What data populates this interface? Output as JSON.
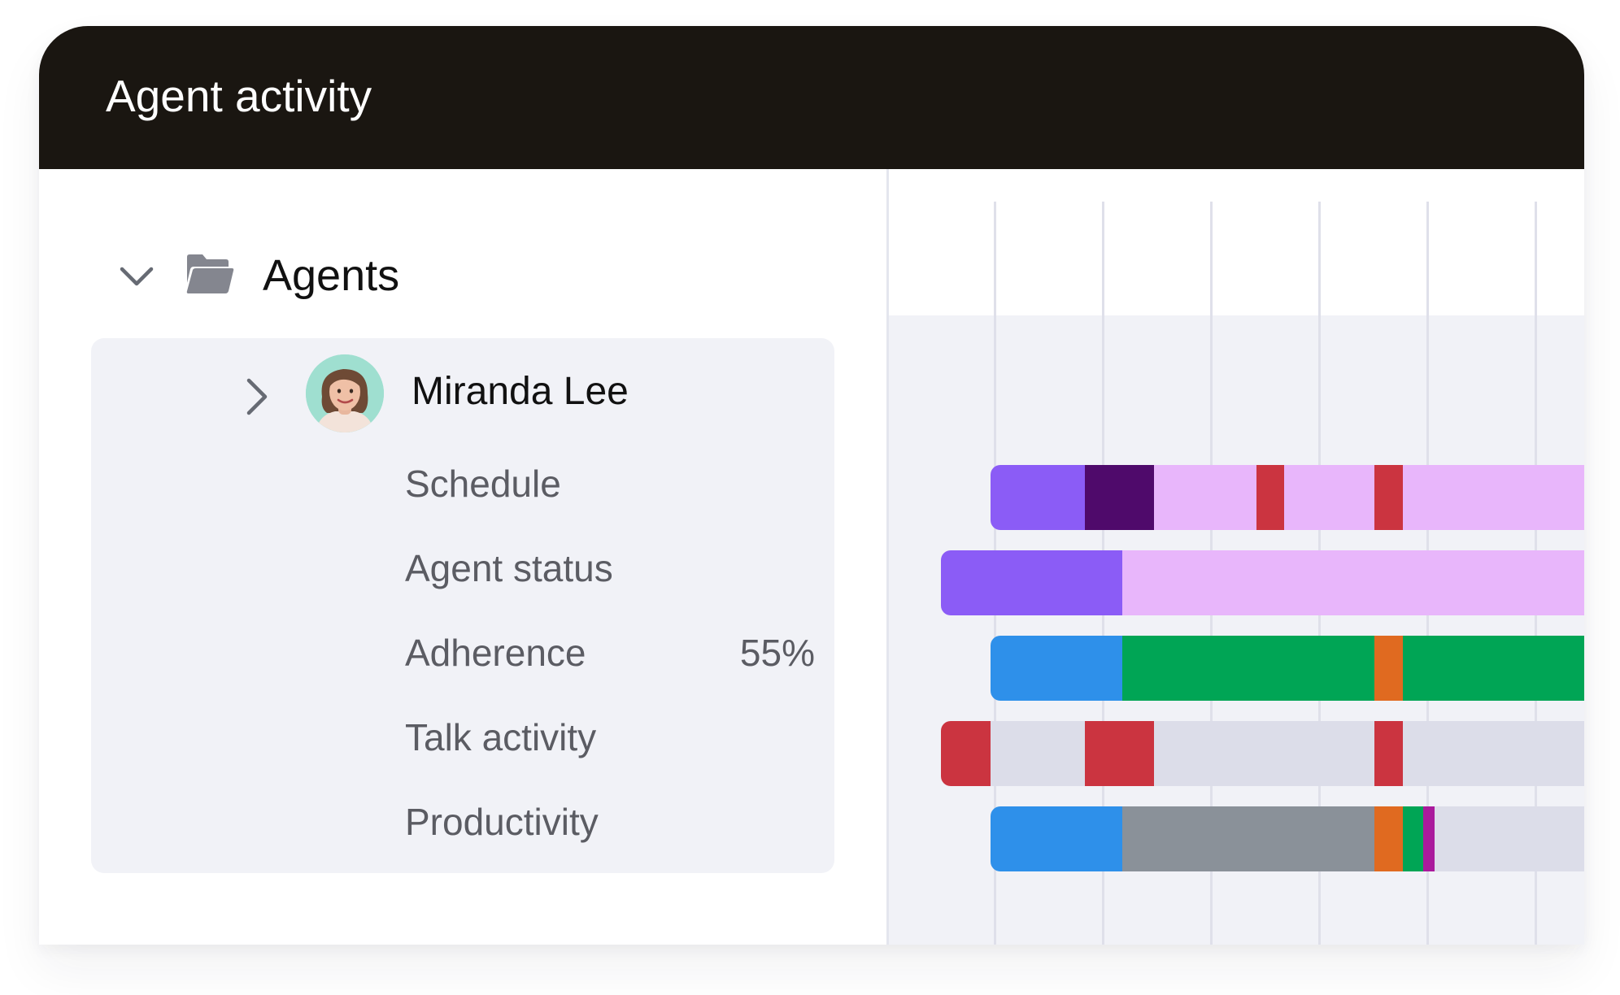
{
  "header": {
    "title": "Agent activity"
  },
  "tree": {
    "group_label": "Agents",
    "agent": {
      "name": "Miranda Lee",
      "metrics": [
        {
          "key": "schedule",
          "label": "Schedule",
          "value": ""
        },
        {
          "key": "agent-status",
          "label": "Agent status",
          "value": ""
        },
        {
          "key": "adherence",
          "label": "Adherence",
          "value": "55%"
        },
        {
          "key": "talk-activity",
          "label": "Talk activity",
          "value": ""
        },
        {
          "key": "productivity",
          "label": "Productivity",
          "value": ""
        }
      ]
    }
  },
  "icons": {
    "group_toggle": "chevron-down-icon",
    "group_folder": "folder-open-icon",
    "agent_toggle": "chevron-right-icon",
    "agent_avatar": "avatar"
  },
  "colors": {
    "header_background": "#1a1611",
    "panel_background": "#f1f2f7",
    "gridline": "#dfe0ea",
    "avatar_background": "#9fdfd0",
    "timeline": {
      "purple": "#8b5cf6",
      "dark-purple": "#4f0a6b",
      "light-pink": "#e8b6fb",
      "red": "#cb3440",
      "blue": "#2e90ea",
      "green": "#00a555",
      "orange": "#e06a20",
      "light-gray": "#dcdde9",
      "gray": "#8a9199",
      "magenta": "#aa1a9c"
    }
  },
  "timeline": {
    "gridline_count": 6,
    "rows": [
      {
        "key": "schedule",
        "segments": [
          {
            "start": 0.146,
            "end": 0.282,
            "color": "purple"
          },
          {
            "start": 0.282,
            "end": 0.381,
            "color": "dark-purple"
          },
          {
            "start": 0.381,
            "end": 0.529,
            "color": "light-pink"
          },
          {
            "start": 0.529,
            "end": 0.569,
            "color": "red"
          },
          {
            "start": 0.569,
            "end": 0.698,
            "color": "light-pink"
          },
          {
            "start": 0.698,
            "end": 0.739,
            "color": "red"
          },
          {
            "start": 0.739,
            "end": 1.0,
            "color": "light-pink"
          }
        ]
      },
      {
        "key": "agent-status",
        "segments": [
          {
            "start": 0.075,
            "end": 0.336,
            "color": "purple"
          },
          {
            "start": 0.336,
            "end": 1.0,
            "color": "light-pink"
          }
        ]
      },
      {
        "key": "adherence",
        "segments": [
          {
            "start": 0.146,
            "end": 0.336,
            "color": "blue"
          },
          {
            "start": 0.336,
            "end": 0.698,
            "color": "green"
          },
          {
            "start": 0.698,
            "end": 0.739,
            "color": "orange"
          },
          {
            "start": 0.739,
            "end": 1.0,
            "color": "green"
          }
        ]
      },
      {
        "key": "talk-activity",
        "segments": [
          {
            "start": 0.075,
            "end": 0.146,
            "color": "red"
          },
          {
            "start": 0.146,
            "end": 0.282,
            "color": "light-gray"
          },
          {
            "start": 0.282,
            "end": 0.381,
            "color": "red"
          },
          {
            "start": 0.381,
            "end": 0.698,
            "color": "light-gray"
          },
          {
            "start": 0.698,
            "end": 0.739,
            "color": "red"
          },
          {
            "start": 0.739,
            "end": 1.0,
            "color": "light-gray"
          }
        ]
      },
      {
        "key": "productivity",
        "segments": [
          {
            "start": 0.146,
            "end": 0.336,
            "color": "blue"
          },
          {
            "start": 0.336,
            "end": 0.698,
            "color": "gray"
          },
          {
            "start": 0.698,
            "end": 0.739,
            "color": "orange"
          },
          {
            "start": 0.739,
            "end": 0.768,
            "color": "green"
          },
          {
            "start": 0.768,
            "end": 0.785,
            "color": "magenta"
          },
          {
            "start": 0.785,
            "end": 1.0,
            "color": "light-gray"
          }
        ]
      }
    ]
  }
}
